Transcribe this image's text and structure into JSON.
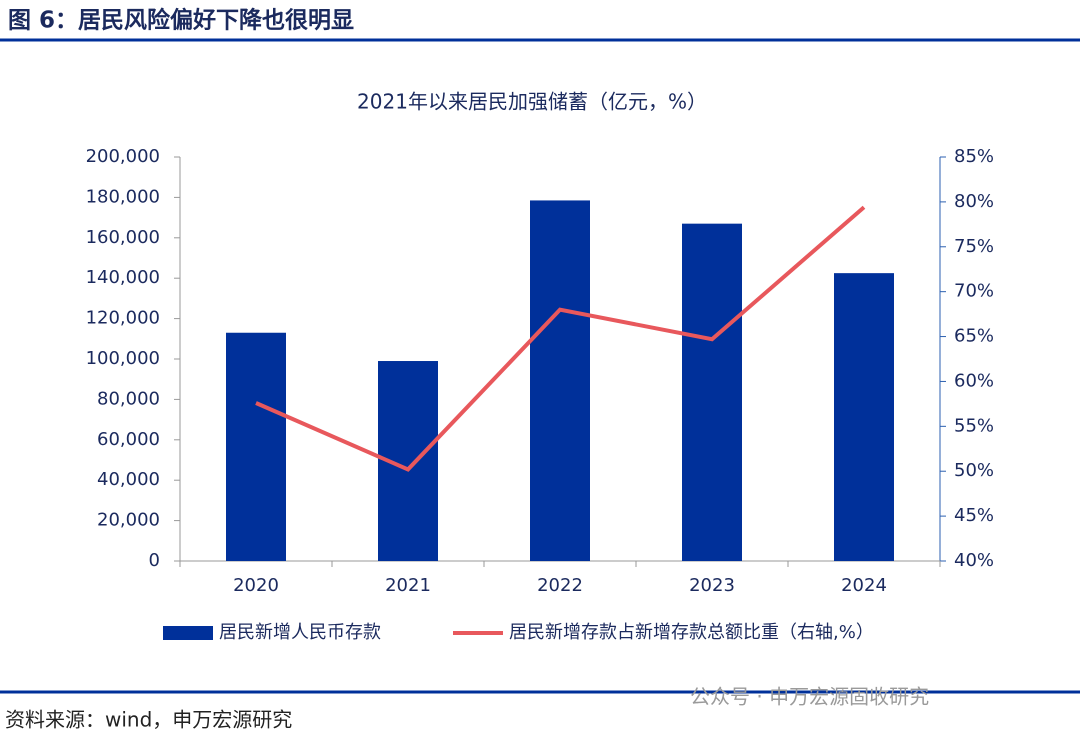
{
  "header": {
    "title": "图 6：居民风险偏好下降也很明显"
  },
  "chart_data": {
    "type": "bar-line",
    "title": "2021年以来居民加强储蓄（亿元，%）",
    "categories": [
      "2020",
      "2021",
      "2022",
      "2023",
      "2024"
    ],
    "series": [
      {
        "name": "居民新增人民币存款",
        "color": "#00309a",
        "type": "bar",
        "values": [
          113000,
          99000,
          178500,
          167000,
          142500
        ]
      },
      {
        "name": "居民新增存款占新增存款总额比重（右轴,%）",
        "color": "#e8585c",
        "type": "line",
        "axis": "y2",
        "values": [
          57.6,
          50.2,
          68.0,
          64.7,
          79.4
        ]
      }
    ],
    "ylim": [
      0,
      200000
    ],
    "yticks": [
      0,
      {
        "value": 20000,
        "label": "20,000"
      },
      {
        "value": 40000,
        "label": "40,000"
      },
      {
        "value": 60000,
        "label": "60,000"
      },
      {
        "value": 80000,
        "label": "80,000"
      },
      {
        "value": 100000,
        "label": "100,000"
      },
      {
        "value": 120000,
        "label": "120,000"
      },
      {
        "value": 140000,
        "label": "140,000"
      },
      {
        "value": 160000,
        "label": "160,000"
      },
      {
        "value": 180000,
        "label": "180,000"
      },
      {
        "value": 200000,
        "label": "200,000"
      }
    ],
    "y2lim": [
      40,
      85
    ],
    "y2ticks": [
      {
        "value": 40,
        "label": "40%"
      },
      {
        "value": 45,
        "label": "45%"
      },
      {
        "value": 50,
        "label": "50%"
      },
      {
        "value": 55,
        "label": "55%"
      },
      {
        "value": 60,
        "label": "60%"
      },
      {
        "value": 65,
        "label": "65%"
      },
      {
        "value": 70,
        "label": "70%"
      },
      {
        "value": 75,
        "label": "75%"
      },
      {
        "value": 80,
        "label": "80%"
      },
      {
        "value": 85,
        "label": "85%"
      }
    ],
    "grid": false
  },
  "footer": {
    "source": "资料来源：wind，申万宏源研究",
    "watermark": "公众号 · 申万宏源固收研究"
  }
}
